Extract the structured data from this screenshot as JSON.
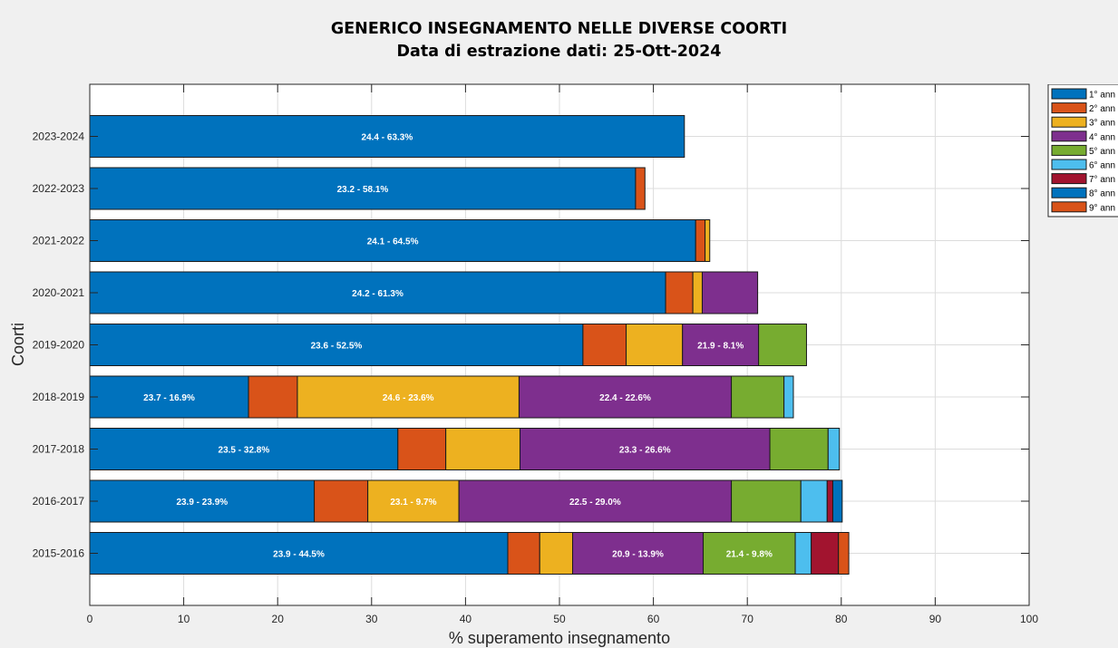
{
  "title_line1": "GENERICO INSEGNAMENTO NELLE DIVERSE COORTI",
  "title_line2": "Data di estrazione dati: 25-Ott-2024",
  "colors": {
    "s1": "#0072BD",
    "s2": "#D95319",
    "s3": "#EDB120",
    "s4": "#7E2F8E",
    "s5": "#77AC30",
    "s6": "#4DBEEE",
    "s7": "#A2142F",
    "s8": "#0072BD",
    "s9": "#D95319"
  },
  "chart_data": {
    "type": "bar",
    "orientation": "horizontal",
    "stacked": true,
    "xlabel": "% superamento insegnamento",
    "ylabel": "Coorti",
    "xlim": [
      0,
      100
    ],
    "xticks": [
      0,
      10,
      20,
      30,
      40,
      50,
      60,
      70,
      80,
      90,
      100
    ],
    "grid": true,
    "legend_position": "top-right, outside plot (clipped)",
    "categories": [
      "2023-2024",
      "2022-2023",
      "2021-2022",
      "2020-2021",
      "2019-2020",
      "2018-2019",
      "2017-2018",
      "2016-2017",
      "2015-2016"
    ],
    "series": [
      {
        "name": "1° ann",
        "values": [
          63.3,
          58.1,
          64.5,
          61.3,
          52.5,
          16.9,
          32.8,
          23.9,
          44.5
        ],
        "labels": [
          "24.4 - 63.3%",
          "23.2 - 58.1%",
          "24.1 - 64.5%",
          "24.2 - 61.3%",
          "23.6 - 52.5%",
          "23.7 - 16.9%",
          "23.5 - 32.8%",
          "23.9 - 23.9%",
          "23.9 - 44.5%"
        ]
      },
      {
        "name": "2° ann",
        "values": [
          0,
          1.0,
          1.0,
          2.9,
          4.6,
          5.2,
          5.1,
          5.7,
          3.4
        ],
        "labels": [
          "",
          "",
          "",
          "",
          "",
          "",
          "",
          "",
          ""
        ]
      },
      {
        "name": "3° ann",
        "values": [
          0,
          0,
          0.5,
          1.0,
          6.0,
          23.6,
          7.9,
          9.7,
          3.5
        ],
        "labels": [
          "",
          "",
          "",
          "",
          "",
          "24.6 - 23.6%",
          "",
          "23.1 - 9.7%",
          ""
        ]
      },
      {
        "name": "4° ann",
        "values": [
          0,
          0,
          0,
          5.9,
          8.1,
          22.6,
          26.6,
          29.0,
          13.9
        ],
        "labels": [
          "",
          "",
          "",
          "",
          "21.9 - 8.1%",
          "22.4 - 22.6%",
          "23.3 - 26.6%",
          "22.5 - 29.0%",
          "20.9 - 13.9%"
        ]
      },
      {
        "name": "5° ann",
        "values": [
          0,
          0,
          0,
          0,
          5.1,
          5.6,
          6.2,
          7.4,
          9.8
        ],
        "labels": [
          "",
          "",
          "",
          "",
          "",
          "",
          "",
          "",
          "21.4 - 9.8%"
        ]
      },
      {
        "name": "6° ann",
        "values": [
          0,
          0,
          0,
          0,
          0,
          1.0,
          1.2,
          2.8,
          1.7
        ],
        "labels": [
          "",
          "",
          "",
          "",
          "",
          "",
          "",
          "",
          ""
        ]
      },
      {
        "name": "7° ann",
        "values": [
          0,
          0,
          0,
          0,
          0,
          0,
          0,
          0.6,
          2.9
        ],
        "labels": [
          "",
          "",
          "",
          "",
          "",
          "",
          "",
          "",
          ""
        ]
      },
      {
        "name": "8° ann",
        "values": [
          0,
          0,
          0,
          0,
          0,
          0,
          0,
          1.0,
          0
        ],
        "labels": [
          "",
          "",
          "",
          "",
          "",
          "",
          "",
          "",
          ""
        ]
      },
      {
        "name": "9° ann",
        "values": [
          0,
          0,
          0,
          0,
          0,
          0,
          0,
          0,
          1.1
        ],
        "labels": [
          "",
          "",
          "",
          "",
          "",
          "",
          "",
          "",
          ""
        ]
      }
    ]
  }
}
